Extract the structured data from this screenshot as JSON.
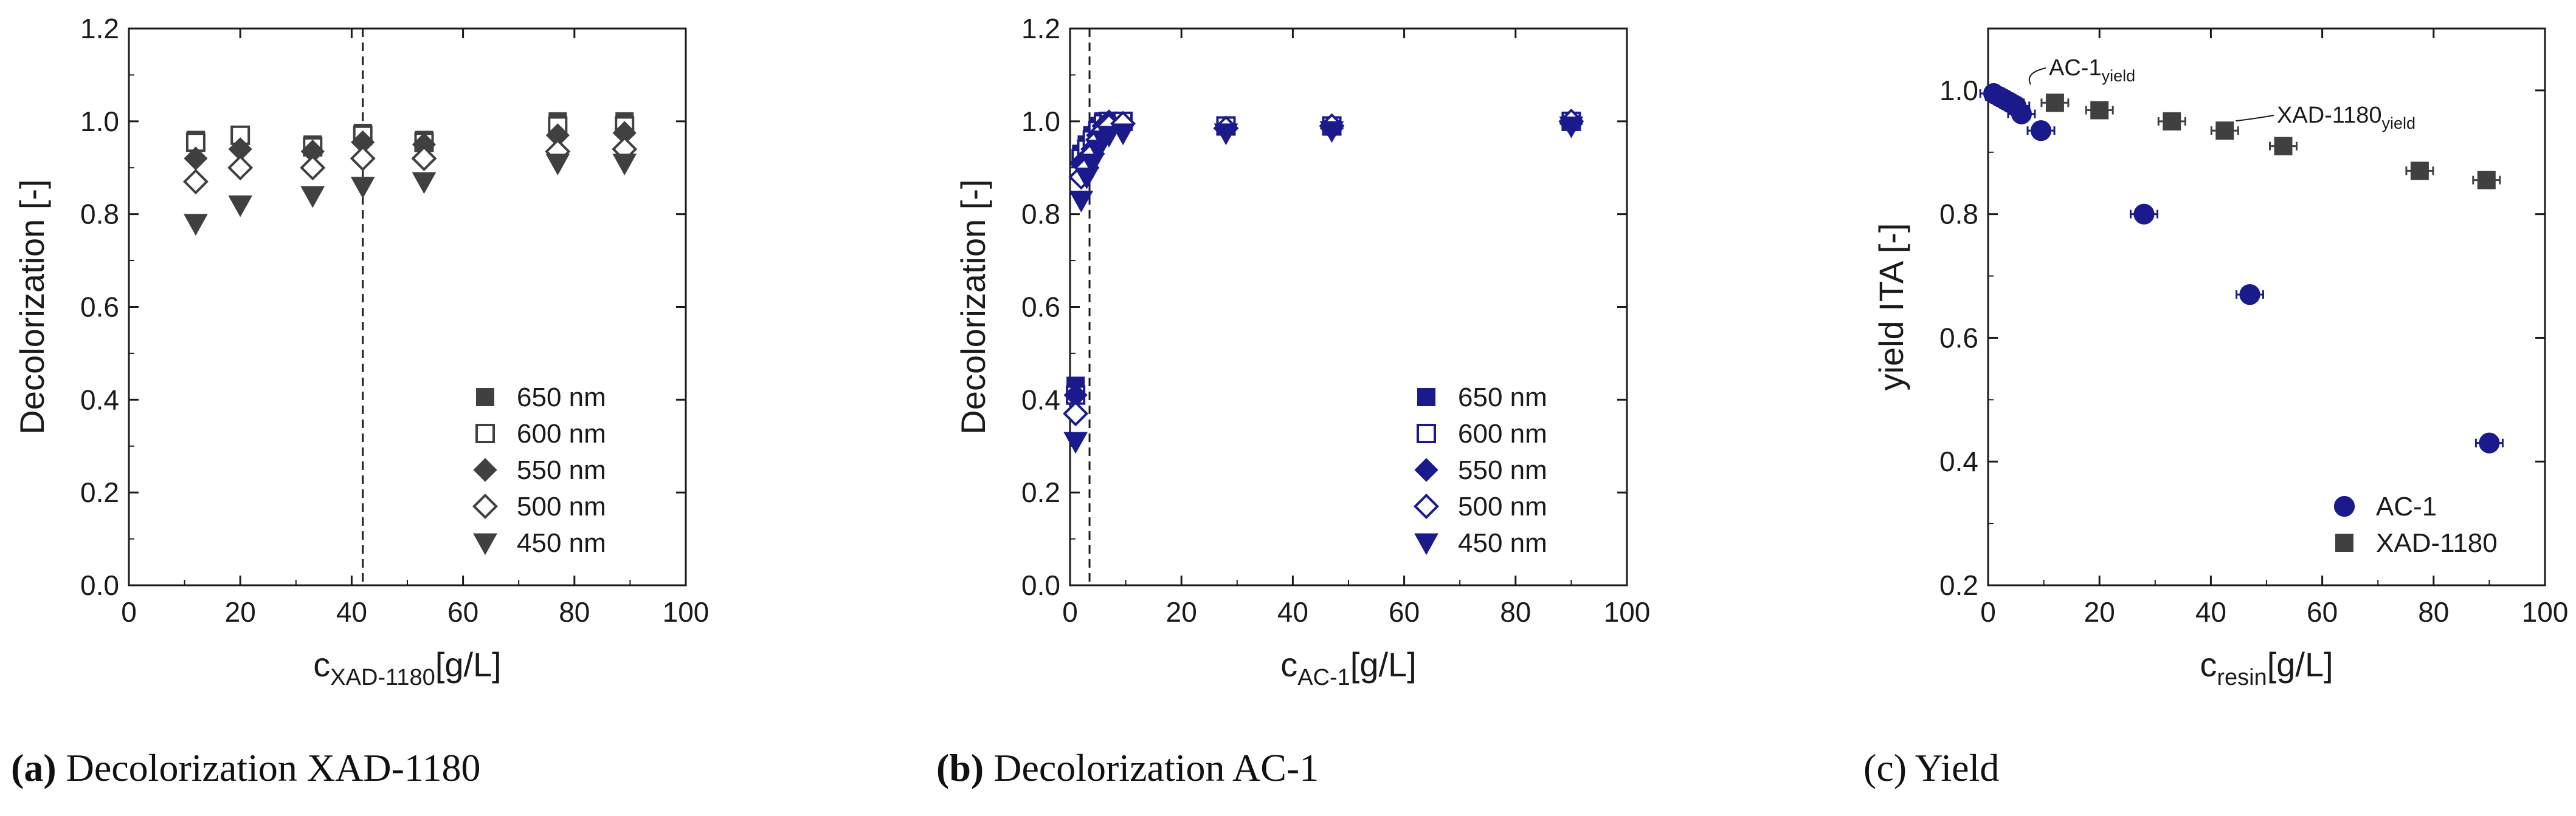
{
  "colors": {
    "gray": "#404040",
    "blue": "#1a1a8c",
    "axis": "#1a1a1a"
  },
  "chart_data": [
    {
      "type": "scatter",
      "panel": "a",
      "title": "",
      "xlabel_main": "c",
      "xlabel_sub": "XAD-1180",
      "xlabel_unit": "[g/L]",
      "ylabel": "Decolorization [-]",
      "xlim": [
        0,
        100
      ],
      "ylim": [
        0,
        1.2
      ],
      "xticks": [
        "0",
        "20",
        "40",
        "60",
        "80",
        "100"
      ],
      "yticks": [
        "0.0",
        "0.2",
        "0.4",
        "0.6",
        "0.8",
        "1.0",
        "1.2"
      ],
      "dashed_line_x": 42,
      "color": "#404040",
      "legend_position": "bottom-right",
      "series": [
        {
          "name": "650 nm",
          "marker": "square-filled",
          "x": [
            12,
            20,
            33,
            42,
            53,
            77,
            89
          ],
          "y": [
            0.96,
            0.97,
            0.95,
            0.975,
            0.96,
            1.0,
            1.0
          ]
        },
        {
          "name": "600 nm",
          "marker": "square-open",
          "x": [
            12,
            20,
            33,
            42,
            53,
            77,
            89
          ],
          "y": [
            0.955,
            0.97,
            0.945,
            0.97,
            0.955,
            0.99,
            0.99
          ]
        },
        {
          "name": "550 nm",
          "marker": "diamond-filled",
          "x": [
            12,
            20,
            33,
            42,
            53,
            77,
            89
          ],
          "y": [
            0.92,
            0.94,
            0.935,
            0.955,
            0.95,
            0.97,
            0.975
          ]
        },
        {
          "name": "500 nm",
          "marker": "diamond-open",
          "x": [
            12,
            20,
            33,
            42,
            53,
            77,
            89
          ],
          "y": [
            0.87,
            0.9,
            0.9,
            0.92,
            0.92,
            0.935,
            0.94
          ]
        },
        {
          "name": "450 nm",
          "marker": "triangle-down-filled",
          "x": [
            12,
            20,
            33,
            42,
            53,
            77,
            89
          ],
          "y": [
            0.78,
            0.82,
            0.84,
            0.86,
            0.87,
            0.91,
            0.91
          ]
        }
      ]
    },
    {
      "type": "scatter",
      "panel": "b",
      "title": "",
      "xlabel_main": "c",
      "xlabel_sub": "AC-1",
      "xlabel_unit": "[g/L]",
      "ylabel": "Decolorization [-]",
      "xlim": [
        0,
        100
      ],
      "ylim": [
        0,
        1.2
      ],
      "xticks": [
        "0",
        "20",
        "40",
        "60",
        "80",
        "100"
      ],
      "yticks": [
        "0.0",
        "0.2",
        "0.4",
        "0.6",
        "0.8",
        "1.0",
        "1.2"
      ],
      "dashed_line_x": 3.5,
      "color": "#1a1a8c",
      "legend_position": "bottom-right",
      "series": [
        {
          "name": "650 nm",
          "marker": "square-filled",
          "x": [
            1,
            2,
            3,
            4,
            5,
            6,
            7,
            9.5,
            28,
            47,
            90
          ],
          "y": [
            0.43,
            0.93,
            0.95,
            0.97,
            0.99,
            1.0,
            1.0,
            1.0,
            0.99,
            0.99,
            1.0
          ]
        },
        {
          "name": "600 nm",
          "marker": "square-open",
          "x": [
            1,
            2,
            3,
            4,
            5,
            6,
            7,
            9.5,
            28,
            47,
            90
          ],
          "y": [
            0.41,
            0.92,
            0.94,
            0.96,
            0.98,
            0.995,
            1.0,
            1.0,
            0.99,
            0.99,
            1.0
          ]
        },
        {
          "name": "550 nm",
          "marker": "diamond-filled",
          "x": [
            1,
            2,
            3,
            4,
            5,
            6,
            7,
            9.5,
            28,
            47,
            90
          ],
          "y": [
            0.41,
            0.91,
            0.92,
            0.94,
            0.97,
            0.99,
            1.0,
            0.995,
            0.985,
            0.985,
            0.995
          ]
        },
        {
          "name": "500 nm",
          "marker": "diamond-open",
          "x": [
            1,
            2,
            3,
            4,
            5,
            6,
            7,
            9.5,
            28,
            47,
            90
          ],
          "y": [
            0.37,
            0.88,
            0.9,
            0.93,
            0.96,
            0.98,
            0.99,
            0.995,
            0.985,
            0.99,
            1.0
          ]
        },
        {
          "name": "450 nm",
          "marker": "triangle-down-filled",
          "x": [
            1,
            2,
            3,
            4,
            5,
            6,
            7,
            9.5,
            28,
            47,
            90
          ],
          "y": [
            0.31,
            0.83,
            0.88,
            0.91,
            0.94,
            0.96,
            0.97,
            0.975,
            0.975,
            0.98,
            0.99
          ]
        }
      ]
    },
    {
      "type": "scatter",
      "panel": "c",
      "title": "",
      "xlabel_main": "c",
      "xlabel_sub": "resin",
      "xlabel_unit": "[g/L]",
      "ylabel": "yield ITA [-]",
      "xlim": [
        0,
        100
      ],
      "ylim": [
        0.2,
        1.1
      ],
      "xticks": [
        "0",
        "20",
        "40",
        "60",
        "80",
        "100"
      ],
      "yticks": [
        "0.2",
        "0.4",
        "0.6",
        "0.8",
        "1.0"
      ],
      "legend_position": "bottom-right",
      "series": [
        {
          "name": "AC-1",
          "marker": "circle-filled",
          "color": "#1a1a8c",
          "x": [
            1,
            2,
            3,
            4,
            5,
            6,
            9.5,
            28,
            47,
            90
          ],
          "y": [
            0.995,
            0.99,
            0.985,
            0.98,
            0.975,
            0.962,
            0.935,
            0.8,
            0.67,
            0.43
          ]
        },
        {
          "name": "XAD-1180",
          "marker": "square-filled",
          "color": "#404040",
          "x": [
            12,
            20,
            33,
            42.5,
            53,
            77.5,
            89.5
          ],
          "y": [
            0.98,
            0.968,
            0.95,
            0.935,
            0.91,
            0.87,
            0.855
          ]
        }
      ],
      "annotations": [
        {
          "main": "AC-1",
          "sub": "yield"
        },
        {
          "main": "XAD-1180",
          "sub": "yield"
        }
      ]
    }
  ],
  "captions": [
    {
      "label": "(a)",
      "text": "Decolorization XAD-1180"
    },
    {
      "label": "(b)",
      "text": "Decolorization AC-1"
    },
    {
      "label": "(c)",
      "text": "Yield"
    }
  ]
}
